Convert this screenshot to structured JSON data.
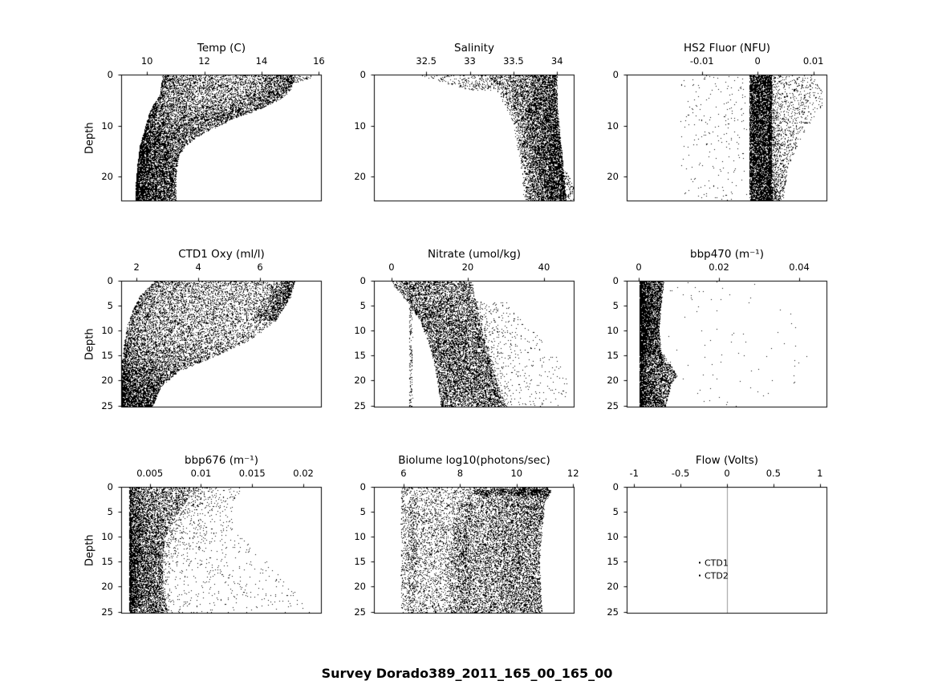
{
  "figure_title": "Survey Dorado389_2011_165_00_165_00",
  "colors": {
    "scatter": "#000000",
    "axis": "#000000",
    "flow_line": "#999999"
  },
  "chart_data": [
    {
      "type": "scatter",
      "title": "Temp (C)",
      "ylabel": "Depth",
      "xlim": [
        9.1,
        16.1
      ],
      "xticks": [
        10,
        12,
        14,
        16
      ],
      "xtick_labels": [
        "10",
        "12",
        "14",
        "16"
      ],
      "ylim": [
        0,
        24.8
      ],
      "yticks": [
        0,
        10,
        20
      ],
      "ytick_labels": [
        "0",
        "10",
        "20"
      ],
      "bands": [
        {
          "n": 11000,
          "bias": 1.4,
          "envelope": [
            [
              0,
              10.55,
              15.1
            ],
            [
              2,
              10.5,
              15.05
            ],
            [
              4,
              10.45,
              14.7
            ],
            [
              6,
              10.2,
              14.2
            ],
            [
              8,
              10.05,
              13.2
            ],
            [
              10,
              9.95,
              12.5
            ],
            [
              12,
              9.85,
              11.8
            ],
            [
              14,
              9.75,
              11.3
            ],
            [
              16,
              9.7,
              11.1
            ],
            [
              20,
              9.62,
              11.0
            ],
            [
              24.8,
              9.6,
              11.0
            ]
          ]
        },
        {
          "n": 1200,
          "bias": 0.5,
          "envelope": [
            [
              0,
              13.5,
              15.15
            ],
            [
              3,
              13.2,
              15.0
            ],
            [
              5,
              12.5,
              14.6
            ],
            [
              7,
              11.5,
              13.8
            ],
            [
              9,
              10.8,
              12.8
            ]
          ]
        },
        {
          "n": 90,
          "bias": 1,
          "envelope": [
            [
              0,
              15.0,
              15.9
            ],
            [
              1.5,
              14.8,
              15.4
            ]
          ]
        }
      ]
    },
    {
      "type": "scatter",
      "title": "Salinity",
      "xlim": [
        31.9,
        34.2
      ],
      "xticks": [
        32.5,
        33,
        33.5,
        34
      ],
      "xtick_labels": [
        "32.5",
        "33",
        "33.5",
        "34"
      ],
      "ylim": [
        0,
        24.8
      ],
      "yticks": [
        0,
        10,
        20
      ],
      "ytick_labels": [
        "0",
        "10",
        "20"
      ],
      "bands": [
        {
          "n": 8500,
          "bias": 0.65,
          "envelope": [
            [
              0,
              33.15,
              34.0
            ],
            [
              3,
              33.3,
              34.0
            ],
            [
              6,
              33.4,
              34.0
            ],
            [
              10,
              33.5,
              34.02
            ],
            [
              15,
              33.55,
              34.05
            ],
            [
              20,
              33.6,
              34.08
            ],
            [
              24.8,
              33.6,
              34.1
            ]
          ]
        },
        {
          "n": 260,
          "bias": 1,
          "envelope": [
            [
              0,
              32.4,
              33.2
            ],
            [
              1.5,
              32.7,
              33.35
            ],
            [
              3,
              33.0,
              33.45
            ]
          ]
        },
        {
          "n": 130,
          "bias": 1,
          "envelope": [
            [
              19,
              34.05,
              34.12
            ],
            [
              22,
              34.05,
              34.18
            ],
            [
              24.8,
              34.0,
              34.2
            ]
          ]
        }
      ]
    },
    {
      "type": "scatter",
      "title": "HS2 Fluor (NFU)",
      "xlim": [
        -0.0235,
        0.0125
      ],
      "xticks": [
        -0.01,
        0,
        0.01
      ],
      "xtick_labels": [
        "-0.01",
        "0",
        "0.01"
      ],
      "ylim": [
        0,
        24.8
      ],
      "yticks": [
        0,
        10,
        20
      ],
      "ytick_labels": [
        "0",
        "10",
        "20"
      ],
      "bands": [
        {
          "n": 7000,
          "bias": 1,
          "envelope": [
            [
              0,
              -0.0015,
              0.0025
            ],
            [
              24.8,
              -0.0015,
              0.0025
            ]
          ]
        },
        {
          "n": 1800,
          "bias": 1.8,
          "envelope": [
            [
              0,
              0.002,
              0.01
            ],
            [
              3,
              0.002,
              0.0115
            ],
            [
              6,
              0.002,
              0.0115
            ],
            [
              10,
              0.002,
              0.009
            ],
            [
              14,
              0.002,
              0.007
            ],
            [
              18,
              0.002,
              0.0055
            ],
            [
              24.8,
              0.002,
              0.0045
            ]
          ]
        },
        {
          "n": 220,
          "bias": 0.9,
          "envelope": [
            [
              0,
              -0.014,
              -0.002
            ],
            [
              24.8,
              -0.014,
              -0.002
            ]
          ]
        }
      ]
    },
    {
      "type": "scatter",
      "title": "CTD1 Oxy (ml/l)",
      "ylabel": "Depth",
      "xlim": [
        1.5,
        8.0
      ],
      "xticks": [
        2,
        4,
        6
      ],
      "xtick_labels": [
        "2",
        "4",
        "6"
      ],
      "ylim": [
        0,
        25.4
      ],
      "yticks": [
        0,
        5,
        10,
        15,
        20,
        25
      ],
      "ytick_labels": [
        "0",
        "5",
        "10",
        "15",
        "20",
        "25"
      ],
      "bands": [
        {
          "n": 10500,
          "bias": 1.25,
          "envelope": [
            [
              0,
              2.6,
              7.1
            ],
            [
              3,
              2.1,
              7.0
            ],
            [
              6,
              1.85,
              6.7
            ],
            [
              9,
              1.7,
              6.3
            ],
            [
              12,
              1.6,
              5.6
            ],
            [
              15,
              1.55,
              4.6
            ],
            [
              18,
              1.5,
              3.4
            ],
            [
              21,
              1.5,
              2.8
            ],
            [
              25.4,
              1.5,
              2.5
            ]
          ]
        },
        {
          "n": 800,
          "bias": 0.5,
          "envelope": [
            [
              0,
              6.2,
              7.15
            ],
            [
              4,
              6.0,
              6.9
            ],
            [
              8,
              5.6,
              6.5
            ]
          ]
        }
      ]
    },
    {
      "type": "scatter",
      "title": "Nitrate (umol/kg)",
      "xlim": [
        -4.6,
        48
      ],
      "xticks": [
        0,
        20,
        40
      ],
      "xtick_labels": [
        "0",
        "20",
        "40"
      ],
      "ylim": [
        0,
        25.4
      ],
      "yticks": [
        0,
        5,
        10,
        15,
        20,
        25
      ],
      "ytick_labels": [
        "0",
        "5",
        "10",
        "15",
        "20",
        "25"
      ],
      "bands": [
        {
          "n": 8500,
          "bias": 1,
          "envelope": [
            [
              0,
              -0.5,
              21
            ],
            [
              4,
              4,
              22
            ],
            [
              8,
              7.5,
              23
            ],
            [
              12,
              9.5,
              24.5
            ],
            [
              16,
              11,
              26
            ],
            [
              20,
              12,
              27.5
            ],
            [
              25.4,
              13,
              30
            ]
          ]
        },
        {
          "n": 480,
          "bias": 1.6,
          "envelope": [
            [
              4,
              22,
              30
            ],
            [
              8,
              23,
              34
            ],
            [
              12,
              25,
              40
            ],
            [
              16,
              26,
              44
            ],
            [
              20,
              28,
              46
            ],
            [
              25.4,
              30,
              46
            ]
          ]
        },
        {
          "n": 180,
          "bias": 1,
          "envelope": [
            [
              0,
              4.6,
              5.4
            ],
            [
              25.4,
              4.6,
              5.4
            ]
          ]
        }
      ]
    },
    {
      "type": "scatter",
      "title": "bbp470 (m⁻¹)",
      "xlim": [
        -0.003,
        0.047
      ],
      "xticks": [
        0,
        0.02,
        0.04
      ],
      "xtick_labels": [
        "0",
        "0.02",
        "0.04"
      ],
      "ylim": [
        0,
        25.4
      ],
      "yticks": [
        0,
        5,
        10,
        15,
        20,
        25
      ],
      "ytick_labels": [
        "0",
        "5",
        "10",
        "15",
        "20",
        "25"
      ],
      "bands": [
        {
          "n": 7500,
          "bias": 1.5,
          "envelope": [
            [
              0,
              0.0002,
              0.0062
            ],
            [
              5,
              0.0002,
              0.0055
            ],
            [
              10,
              0.0002,
              0.005
            ],
            [
              14,
              0.0002,
              0.0055
            ],
            [
              17,
              0.0002,
              0.008
            ],
            [
              19,
              0.0002,
              0.0095
            ],
            [
              21,
              0.0002,
              0.008
            ],
            [
              25.4,
              0.0002,
              0.0065
            ]
          ]
        },
        {
          "n": 80,
          "bias": 1,
          "envelope": [
            [
              0,
              0.007,
              0.03
            ],
            [
              10,
              0.007,
              0.042
            ],
            [
              20,
              0.007,
              0.045
            ],
            [
              25.4,
              0.007,
              0.03
            ]
          ]
        }
      ]
    },
    {
      "type": "scatter",
      "title": "bbp676 (m⁻¹)",
      "ylabel": "Depth",
      "xlim": [
        0.0022,
        0.0218
      ],
      "xticks": [
        0.005,
        0.01,
        0.015,
        0.02
      ],
      "xtick_labels": [
        "0.005",
        "0.01",
        "0.015",
        "0.02"
      ],
      "ylim": [
        0,
        25.4
      ],
      "yticks": [
        0,
        5,
        10,
        15,
        20,
        25
      ],
      "ytick_labels": [
        "0",
        "5",
        "10",
        "15",
        "20",
        "25"
      ],
      "bands": [
        {
          "n": 7500,
          "bias": 1.5,
          "envelope": [
            [
              0,
              0.003,
              0.0095
            ],
            [
              3,
              0.003,
              0.0085
            ],
            [
              6,
              0.003,
              0.0075
            ],
            [
              10,
              0.003,
              0.0065
            ],
            [
              15,
              0.003,
              0.0062
            ],
            [
              20,
              0.003,
              0.0062
            ],
            [
              25.4,
              0.003,
              0.0068
            ]
          ]
        },
        {
          "n": 900,
          "bias": 1.8,
          "envelope": [
            [
              0,
              0.0095,
              0.014
            ],
            [
              4,
              0.0085,
              0.013
            ],
            [
              8,
              0.007,
              0.013
            ],
            [
              12,
              0.0065,
              0.015
            ],
            [
              16,
              0.0062,
              0.017
            ],
            [
              20,
              0.0062,
              0.019
            ],
            [
              25.4,
              0.0065,
              0.021
            ]
          ]
        }
      ]
    },
    {
      "type": "scatter",
      "title": "Biolume log10(photons/sec)",
      "xlim": [
        4.95,
        12.05
      ],
      "xticks": [
        6,
        8,
        10,
        12
      ],
      "xtick_labels": [
        "6",
        "8",
        "10",
        "12"
      ],
      "ylim": [
        0,
        25.4
      ],
      "yticks": [
        0,
        5,
        10,
        15,
        20,
        25
      ],
      "ytick_labels": [
        "0",
        "5",
        "10",
        "15",
        "20",
        "25"
      ],
      "bands": [
        {
          "n": 8000,
          "bias": 0.75,
          "envelope": [
            [
              0,
              8.3,
              11.1
            ],
            [
              1,
              8.4,
              11.2
            ],
            [
              3,
              8.0,
              11.0
            ],
            [
              8,
              7.7,
              10.9
            ],
            [
              15,
              7.6,
              10.8
            ],
            [
              25.4,
              7.6,
              10.9
            ]
          ]
        },
        {
          "n": 3000,
          "bias": 1,
          "envelope": [
            [
              0,
              5.9,
              8.4
            ],
            [
              25.4,
              5.9,
              8.4
            ]
          ]
        },
        {
          "n": 260,
          "bias": 1,
          "envelope": [
            [
              2,
              6.15,
              6.45
            ],
            [
              25.4,
              6.15,
              6.45
            ]
          ]
        },
        {
          "n": 500,
          "bias": 0.8,
          "envelope": [
            [
              0.4,
              8.5,
              11.2
            ],
            [
              1.6,
              8.5,
              11.2
            ]
          ]
        }
      ]
    },
    {
      "type": "scatter",
      "title": "Flow (Volts)",
      "xlim": [
        -1.08,
        1.08
      ],
      "xticks": [
        -1,
        -0.5,
        0,
        0.5,
        1
      ],
      "xtick_labels": [
        "-1",
        "-0.5",
        "0",
        "0.5",
        "1"
      ],
      "ylim": [
        0,
        25.4
      ],
      "yticks": [
        0,
        5,
        10,
        15,
        20,
        25
      ],
      "ytick_labels": [
        "0",
        "5",
        "10",
        "15",
        "20",
        "25"
      ],
      "bands": [],
      "vline": {
        "x": 0,
        "color": "#999999"
      },
      "legend": {
        "items": [
          "CTD1",
          "CTD2"
        ],
        "x_frac": 0.36,
        "item_depths": [
          15.2,
          17.8
        ]
      }
    }
  ]
}
